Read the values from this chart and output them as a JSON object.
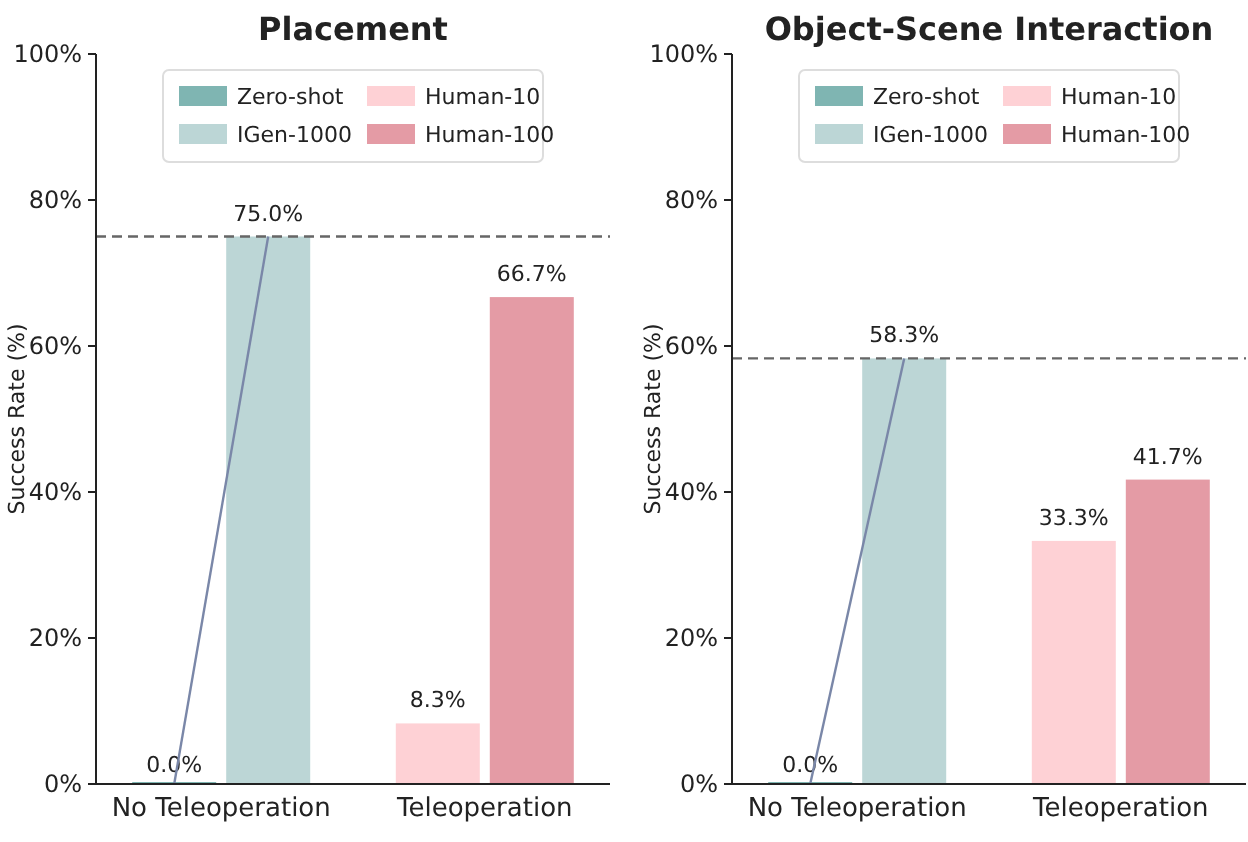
{
  "chart_data": [
    {
      "type": "bar",
      "title": "Placement",
      "ylabel": "Success Rate (%)",
      "categories": [
        "No Teleoperation",
        "Teleoperation"
      ],
      "series": [
        {
          "name": "Zero-shot",
          "color": "#7fb5b2",
          "values": [
            0,
            null
          ],
          "value_labels": [
            "0.0%",
            null
          ]
        },
        {
          "name": "IGen-1000",
          "color": "#bcd6d6",
          "values": [
            75,
            null
          ],
          "value_labels": [
            "75.0%",
            null
          ]
        },
        {
          "name": "Human-10",
          "color": "#fed1d5",
          "values": [
            null,
            8.3
          ],
          "value_labels": [
            null,
            "8.3%"
          ]
        },
        {
          "name": "Human-100",
          "color": "#e49ba5",
          "values": [
            null,
            66.7
          ],
          "value_labels": [
            null,
            "66.7%"
          ]
        }
      ],
      "ylim": [
        0,
        100
      ],
      "yticks": [
        {
          "value": 0,
          "label": "0%"
        },
        {
          "value": 20,
          "label": "20%"
        },
        {
          "value": 40,
          "label": "40%"
        },
        {
          "value": 60,
          "label": "60%"
        },
        {
          "value": 80,
          "label": "80%"
        },
        {
          "value": 100,
          "label": "100%"
        }
      ],
      "ref_lines": [
        {
          "axis": "y",
          "value": 75,
          "color": "#666666",
          "line_style": "dashed"
        }
      ],
      "legend": "top",
      "grid": false
    },
    {
      "type": "bar",
      "title": "Object-Scene Interaction",
      "ylabel": "Success Rate (%)",
      "categories": [
        "No Teleoperation",
        "Teleoperation"
      ],
      "series": [
        {
          "name": "Zero-shot",
          "color": "#7fb5b2",
          "values": [
            0,
            null
          ],
          "value_labels": [
            "0.0%",
            null
          ]
        },
        {
          "name": "IGen-1000",
          "color": "#bcd6d6",
          "values": [
            58.3,
            null
          ],
          "value_labels": [
            "58.3%",
            null
          ]
        },
        {
          "name": "Human-10",
          "color": "#fed1d5",
          "values": [
            null,
            33.3
          ],
          "value_labels": [
            null,
            "33.3%"
          ]
        },
        {
          "name": "Human-100",
          "color": "#e49ba5",
          "values": [
            null,
            41.7
          ],
          "value_labels": [
            null,
            "41.7%"
          ]
        }
      ],
      "ylim": [
        0,
        100
      ],
      "yticks": [
        {
          "value": 0,
          "label": "0%"
        },
        {
          "value": 20,
          "label": "20%"
        },
        {
          "value": 40,
          "label": "40%"
        },
        {
          "value": 60,
          "label": "60%"
        },
        {
          "value": 80,
          "label": "80%"
        },
        {
          "value": 100,
          "label": "100%"
        }
      ],
      "ref_lines": [
        {
          "axis": "y",
          "value": 58.3,
          "color": "#666666",
          "line_style": "dashed"
        }
      ],
      "legend": "top",
      "grid": false
    }
  ]
}
